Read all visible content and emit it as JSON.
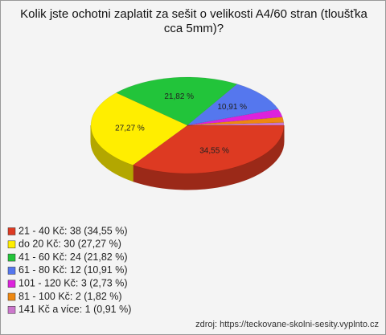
{
  "chart_data": {
    "type": "pie",
    "title": "Kolik jste ochotni zaplatit za sešit o velikosti A4/60 stran (tloušťka cca 5mm)?",
    "categories": [
      "21 - 40 Kč: 38 (34,55 %)",
      "do 20 Kč: 30 (27,27 %)",
      "41 - 60 Kč: 24 (21,82 %)",
      "61 - 80 Kč: 12 (10,91 %)",
      "101 - 120 Kč: 3 (2,73 %)",
      "81 - 100 Kč: 2 (1,82 %)",
      "141 Kč a více: 1 (0,91 %)"
    ],
    "values": [
      34.55,
      27.27,
      21.82,
      10.91,
      2.73,
      1.82,
      0.91
    ],
    "value_labels": [
      "34,55 %",
      "27,27 %",
      "21,82 %",
      "10,91 %",
      null,
      null,
      null
    ],
    "colors": [
      "#dd3a22",
      "#ffee00",
      "#22c43a",
      "#5577ee",
      "#dd22dd",
      "#ee8811",
      "#cc77cc"
    ],
    "source": "zdroj: https://teckovane-skolni-sesity.vyplnto.cz"
  }
}
